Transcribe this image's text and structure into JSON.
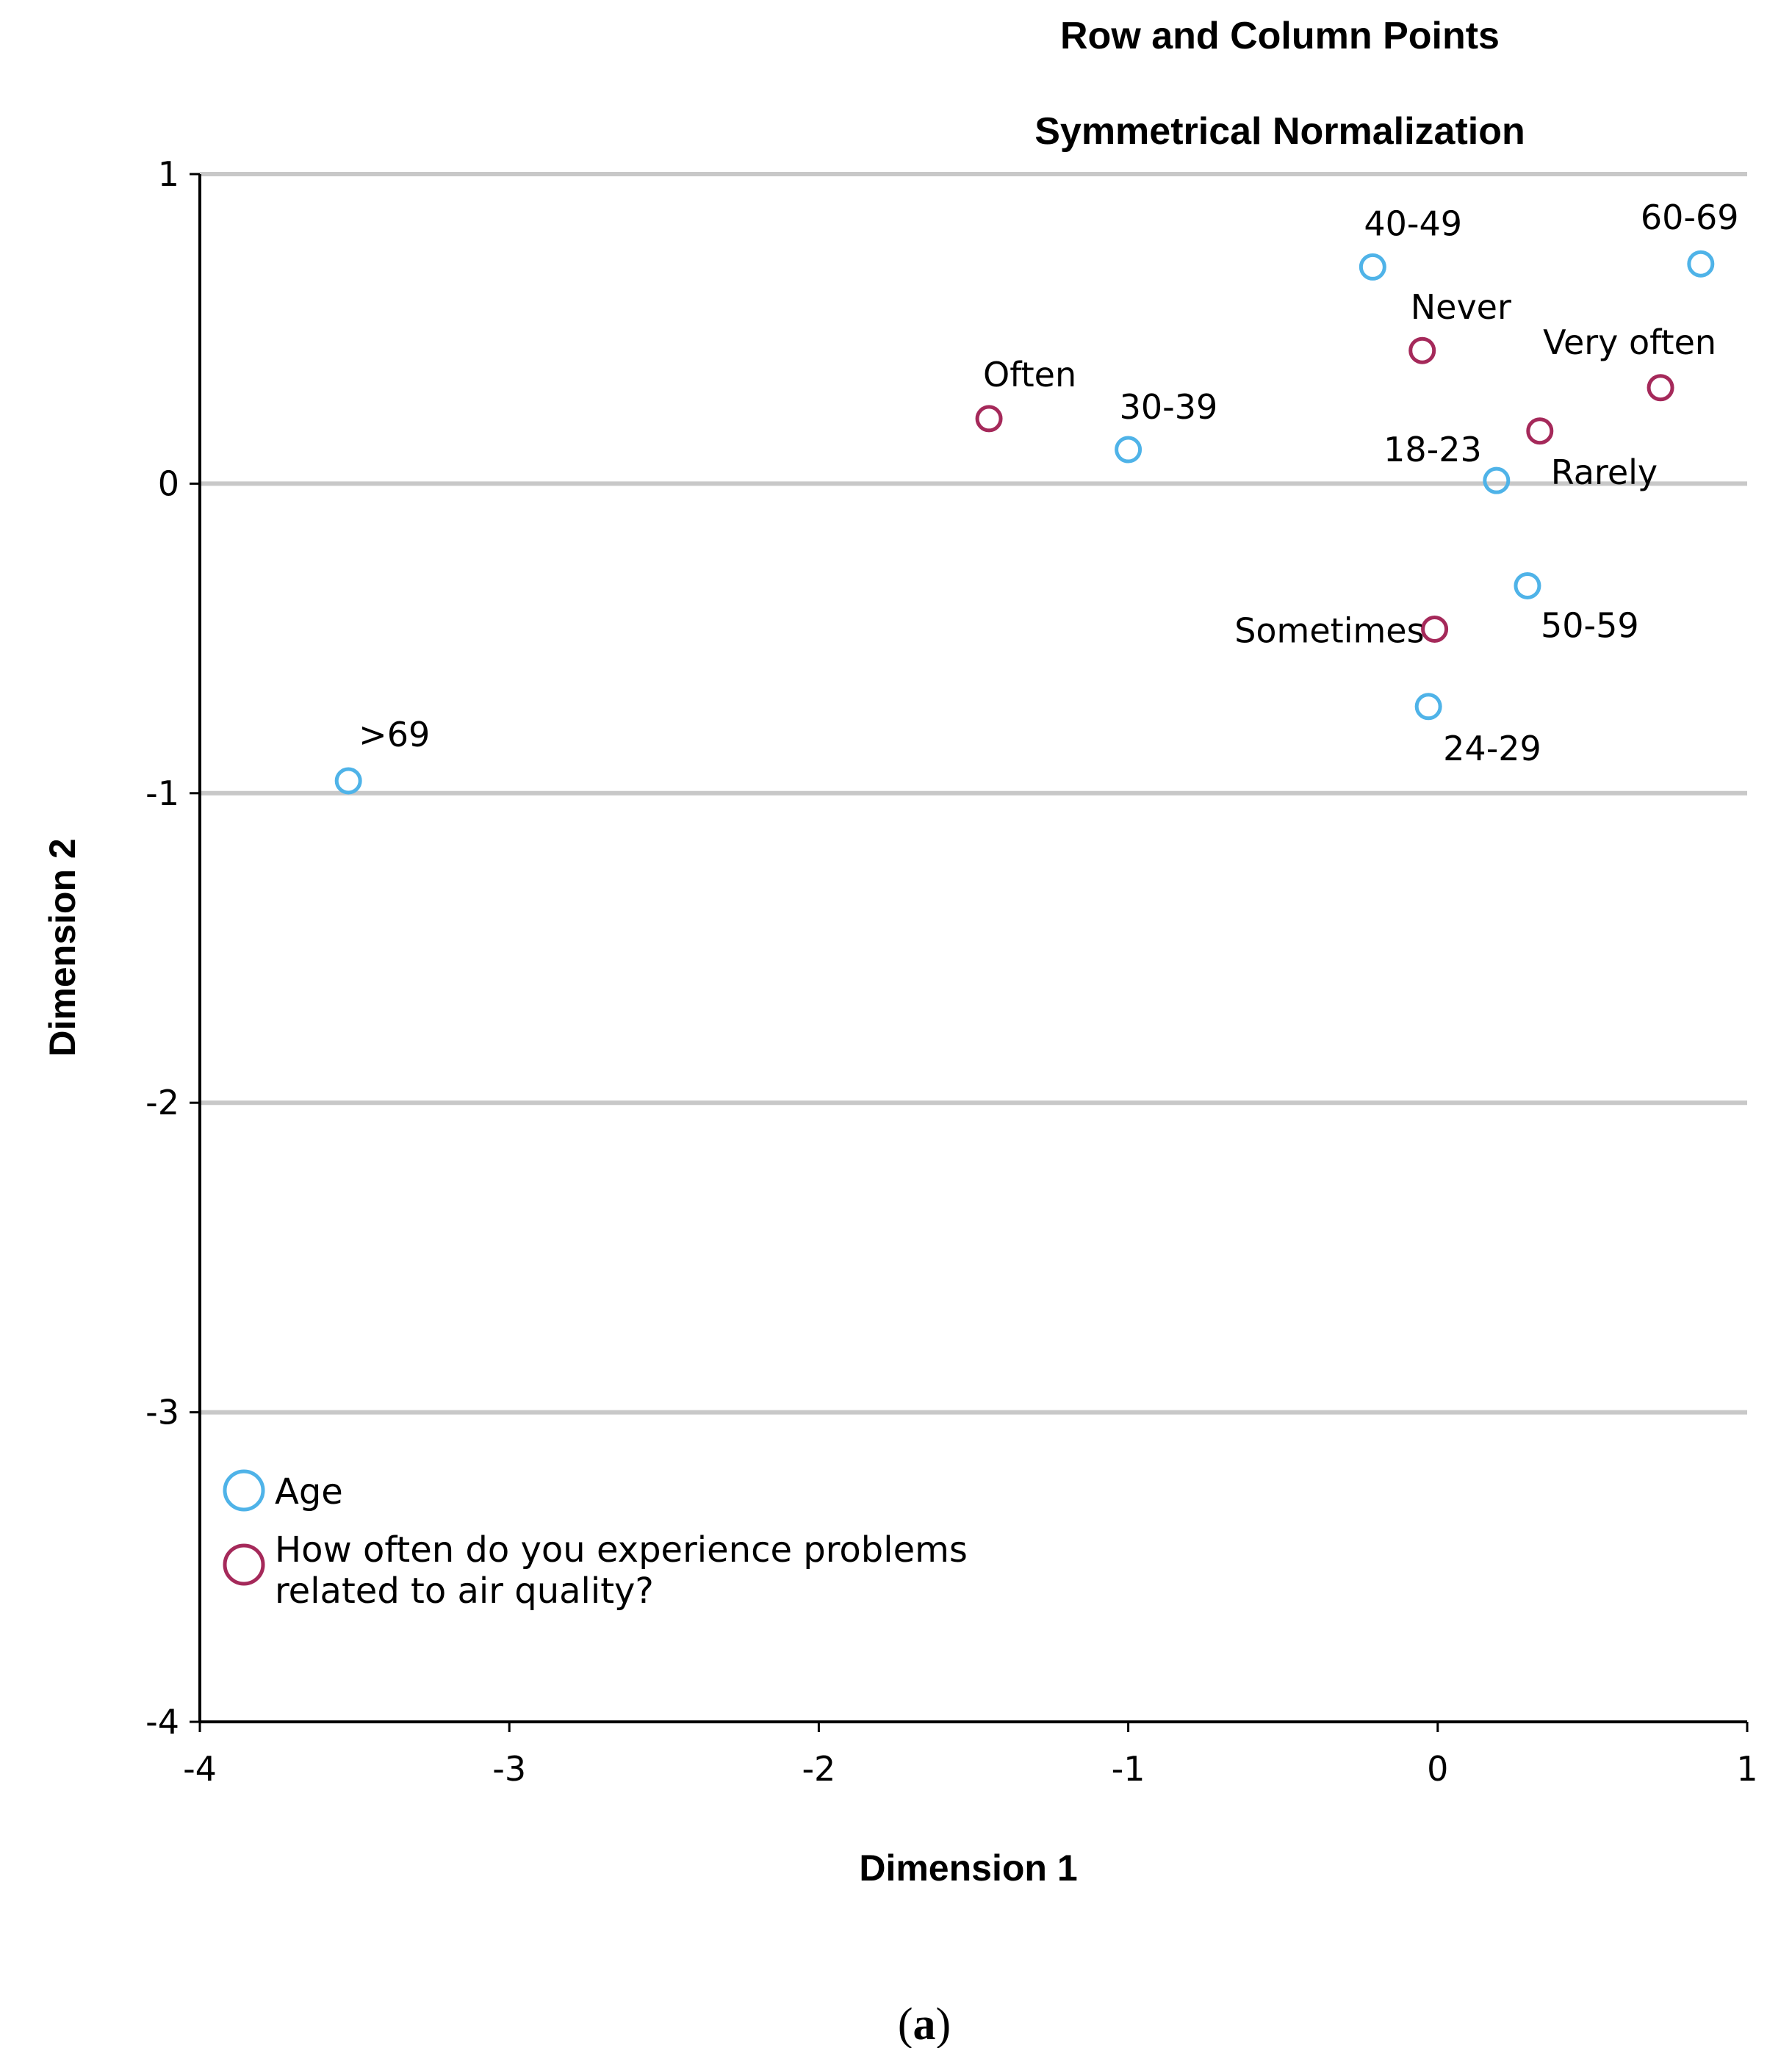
{
  "chart_data": {
    "type": "scatter",
    "title": "Row and Column Points",
    "subtitle": "Symmetrical Normalization",
    "xlabel": "Dimension 1",
    "ylabel": "Dimension 2",
    "xlim": [
      -4,
      1
    ],
    "ylim": [
      -4,
      1
    ],
    "xticks": [
      -4,
      -3,
      -2,
      -1,
      0,
      1
    ],
    "yticks": [
      1,
      0,
      -1,
      -2,
      -3,
      -4
    ],
    "grid": "horizontal",
    "legend_position": "bottom-left",
    "series": [
      {
        "name": "Age",
        "color": "#4fb3e8",
        "points": [
          {
            "label": "18-23",
            "x": 0.19,
            "y": 0.01
          },
          {
            "label": "24-29",
            "x": -0.03,
            "y": -0.72
          },
          {
            "label": "30-39",
            "x": -1.0,
            "y": 0.11
          },
          {
            "label": "40-49",
            "x": -0.21,
            "y": 0.7
          },
          {
            "label": "50-59",
            "x": 0.29,
            "y": -0.33
          },
          {
            "label": "60-69",
            "x": 0.85,
            "y": 0.71
          },
          {
            "label": ">69",
            "x": -3.52,
            "y": -0.96
          }
        ]
      },
      {
        "name": "How often do you experience problems related to air quality?",
        "legend_lines": [
          "How often do you experience problems",
          "related to air quality?"
        ],
        "color": "#a5295a",
        "points": [
          {
            "label": "Never",
            "x": -0.05,
            "y": 0.43
          },
          {
            "label": "Very often",
            "x": 0.72,
            "y": 0.31
          },
          {
            "label": "Often",
            "x": -1.45,
            "y": 0.21
          },
          {
            "label": "Rarely",
            "x": 0.33,
            "y": 0.17
          },
          {
            "label": "Sometimes",
            "x": -0.01,
            "y": -0.47
          }
        ]
      }
    ]
  },
  "caption": {
    "open": "(",
    "letter": "a",
    "close": ")"
  }
}
